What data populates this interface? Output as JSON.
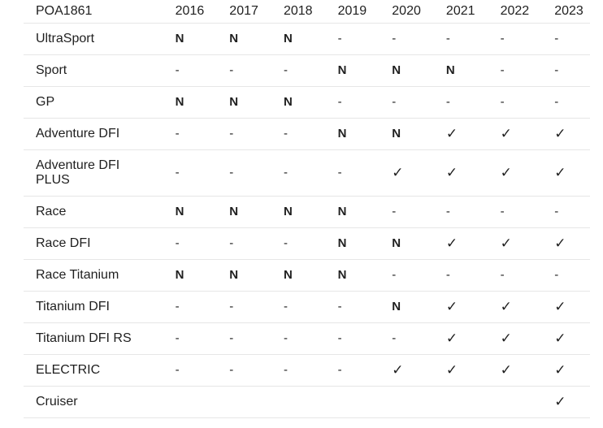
{
  "table": {
    "corner_label": "POA1861",
    "years": [
      "2016",
      "2017",
      "2018",
      "2019",
      "2020",
      "2021",
      "2022",
      "2023"
    ],
    "rows": [
      {
        "model": "UltraSport",
        "values": [
          "N",
          "N",
          "N",
          "-",
          "-",
          "-",
          "-",
          "-"
        ]
      },
      {
        "model": "Sport",
        "values": [
          "-",
          "-",
          "-",
          "N",
          "N",
          "N",
          "-",
          "-"
        ]
      },
      {
        "model": "GP",
        "values": [
          "N",
          "N",
          "N",
          "-",
          "-",
          "-",
          "-",
          "-"
        ]
      },
      {
        "model": "Adventure DFI",
        "values": [
          "-",
          "-",
          "-",
          "N",
          "N",
          "✓",
          "✓",
          "✓"
        ]
      },
      {
        "model": "Adventure DFI PLUS",
        "values": [
          "-",
          "-",
          "-",
          "-",
          "✓",
          "✓",
          "✓",
          "✓"
        ]
      },
      {
        "model": "Race",
        "values": [
          "N",
          "N",
          "N",
          "N",
          "-",
          "-",
          "-",
          "-"
        ]
      },
      {
        "model": "Race DFI",
        "values": [
          "-",
          "-",
          "-",
          "N",
          "N",
          "✓",
          "✓",
          "✓"
        ]
      },
      {
        "model": "Race Titanium",
        "values": [
          "N",
          "N",
          "N",
          "N",
          "-",
          "-",
          "-",
          "-"
        ]
      },
      {
        "model": "Titanium DFI",
        "values": [
          "-",
          "-",
          "-",
          "-",
          "N",
          "✓",
          "✓",
          "✓"
        ]
      },
      {
        "model": "Titanium DFI RS",
        "values": [
          "-",
          "-",
          "-",
          "-",
          "-",
          "✓",
          "✓",
          "✓"
        ]
      },
      {
        "model": "ELECTRIC",
        "values": [
          "-",
          "-",
          "-",
          "-",
          "✓",
          "✓",
          "✓",
          "✓"
        ]
      },
      {
        "model": "Cruiser",
        "values": [
          "",
          "",
          "",
          "",
          "",
          "",
          "",
          "✓"
        ]
      }
    ]
  }
}
